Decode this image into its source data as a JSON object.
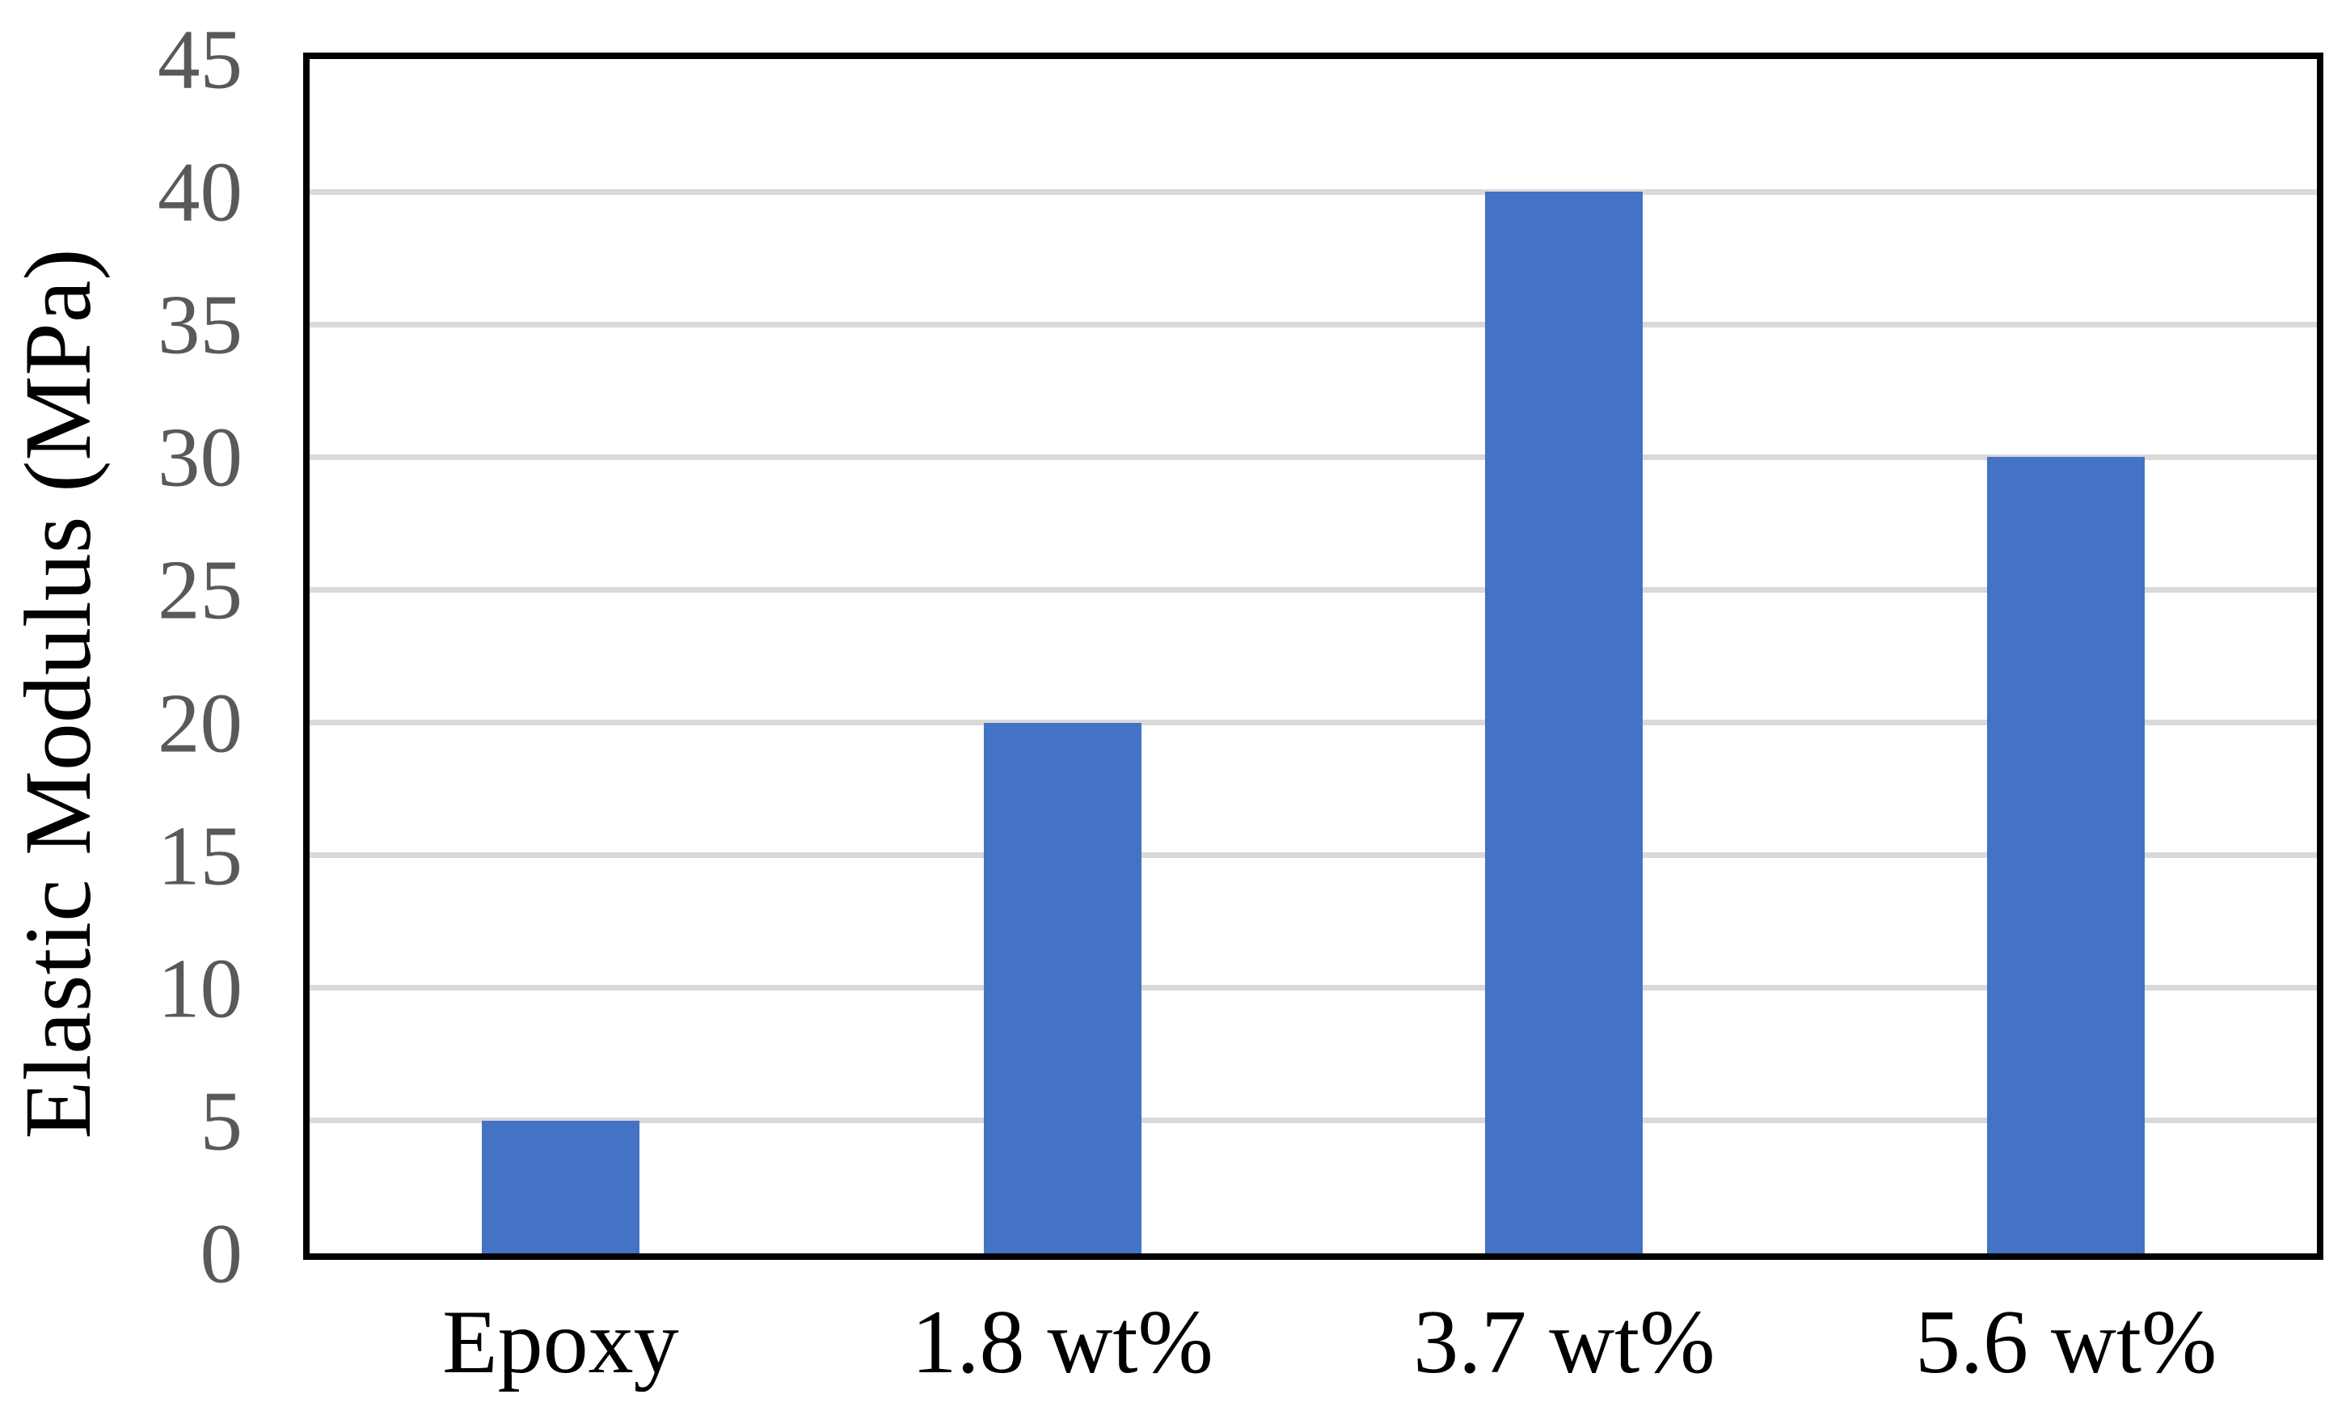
{
  "chart_data": {
    "type": "bar",
    "title": "",
    "categories": [
      "Epoxy",
      "1.8 wt%",
      "3.7 wt%",
      "5.6 wt%"
    ],
    "values": [
      5,
      20,
      40,
      30
    ],
    "xlabel": "",
    "ylabel": "Elastic Modulus (MPa)",
    "ylim": [
      0,
      45
    ],
    "ytick_step": 5,
    "yticks": [
      0,
      5,
      10,
      15,
      20,
      25,
      30,
      35,
      40,
      45
    ],
    "grid": "horizontal",
    "legend": "none",
    "colors": {
      "bar": "#4472C4",
      "gridline": "#D9D9D9",
      "axis_border": "#000000",
      "ytick_label": "#595959",
      "category_label": "#000000",
      "background": "#FFFFFF"
    }
  }
}
